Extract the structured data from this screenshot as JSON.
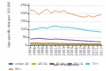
{
  "chart_data": {
    "type": "line",
    "x": [
      1995,
      1996,
      1997,
      1998,
      1999,
      2000,
      2001,
      2002,
      2003,
      2004,
      2005,
      2006,
      2007,
      2008,
      2009,
      2010,
      2011,
      2012
    ],
    "series": [
      {
        "name": "under 45",
        "color": "#4472c4",
        "values": [
          2,
          2,
          1.5,
          2,
          1.5,
          2,
          2,
          1.5,
          2,
          1.5,
          1.5,
          1.5,
          1.5,
          1.5,
          1.5,
          1.5,
          1.5,
          1.5
        ]
      },
      {
        "name": "45-54",
        "color": "#c0c000",
        "values": [
          5,
          5,
          5,
          5,
          4.5,
          5,
          5,
          4.5,
          4.5,
          4.5,
          4,
          4,
          4,
          4,
          3.5,
          3.5,
          3.5,
          3.5
        ]
      },
      {
        "name": "55-64",
        "color": "#a0522d",
        "values": [
          12,
          13,
          12,
          11,
          11,
          12,
          11,
          10,
          10,
          9,
          9,
          9,
          8,
          8,
          7,
          7,
          7,
          7
        ]
      },
      {
        "name": "65-74",
        "color": "#7b5ea7",
        "values": [
          38,
          40,
          42,
          40,
          38,
          36,
          38,
          37,
          35,
          33,
          32,
          30,
          28,
          27,
          25,
          24,
          22,
          21
        ]
      },
      {
        "name": "75+",
        "color": "#4ec9e1",
        "values": [
          95,
          100,
          105,
          110,
          105,
          115,
          120,
          115,
          110,
          112,
          108,
          105,
          100,
          95,
          90,
          88,
          85,
          82
        ]
      },
      {
        "name": "85+",
        "color": "#f4a460",
        "values": [
          220,
          215,
          190,
          210,
          225,
          200,
          215,
          205,
          215,
          200,
          195,
          185,
          180,
          175,
          185,
          175,
          185,
          190
        ]
      }
    ],
    "xlabel": "Year of diagnosis",
    "ylabel": "Age-specific rate per 100,000",
    "xlim": [
      1994.7,
      2012.3
    ],
    "xticks": [
      1995,
      1996,
      1997,
      1998,
      1999,
      2000,
      2001,
      2002,
      2003,
      2004,
      2005,
      2006,
      2007,
      2008,
      2009,
      2010,
      2011,
      2012
    ],
    "ylim": [
      0,
      260
    ],
    "yticks": [
      0,
      50,
      100,
      150,
      200,
      250
    ],
    "grid": true,
    "legend": "bottom"
  }
}
